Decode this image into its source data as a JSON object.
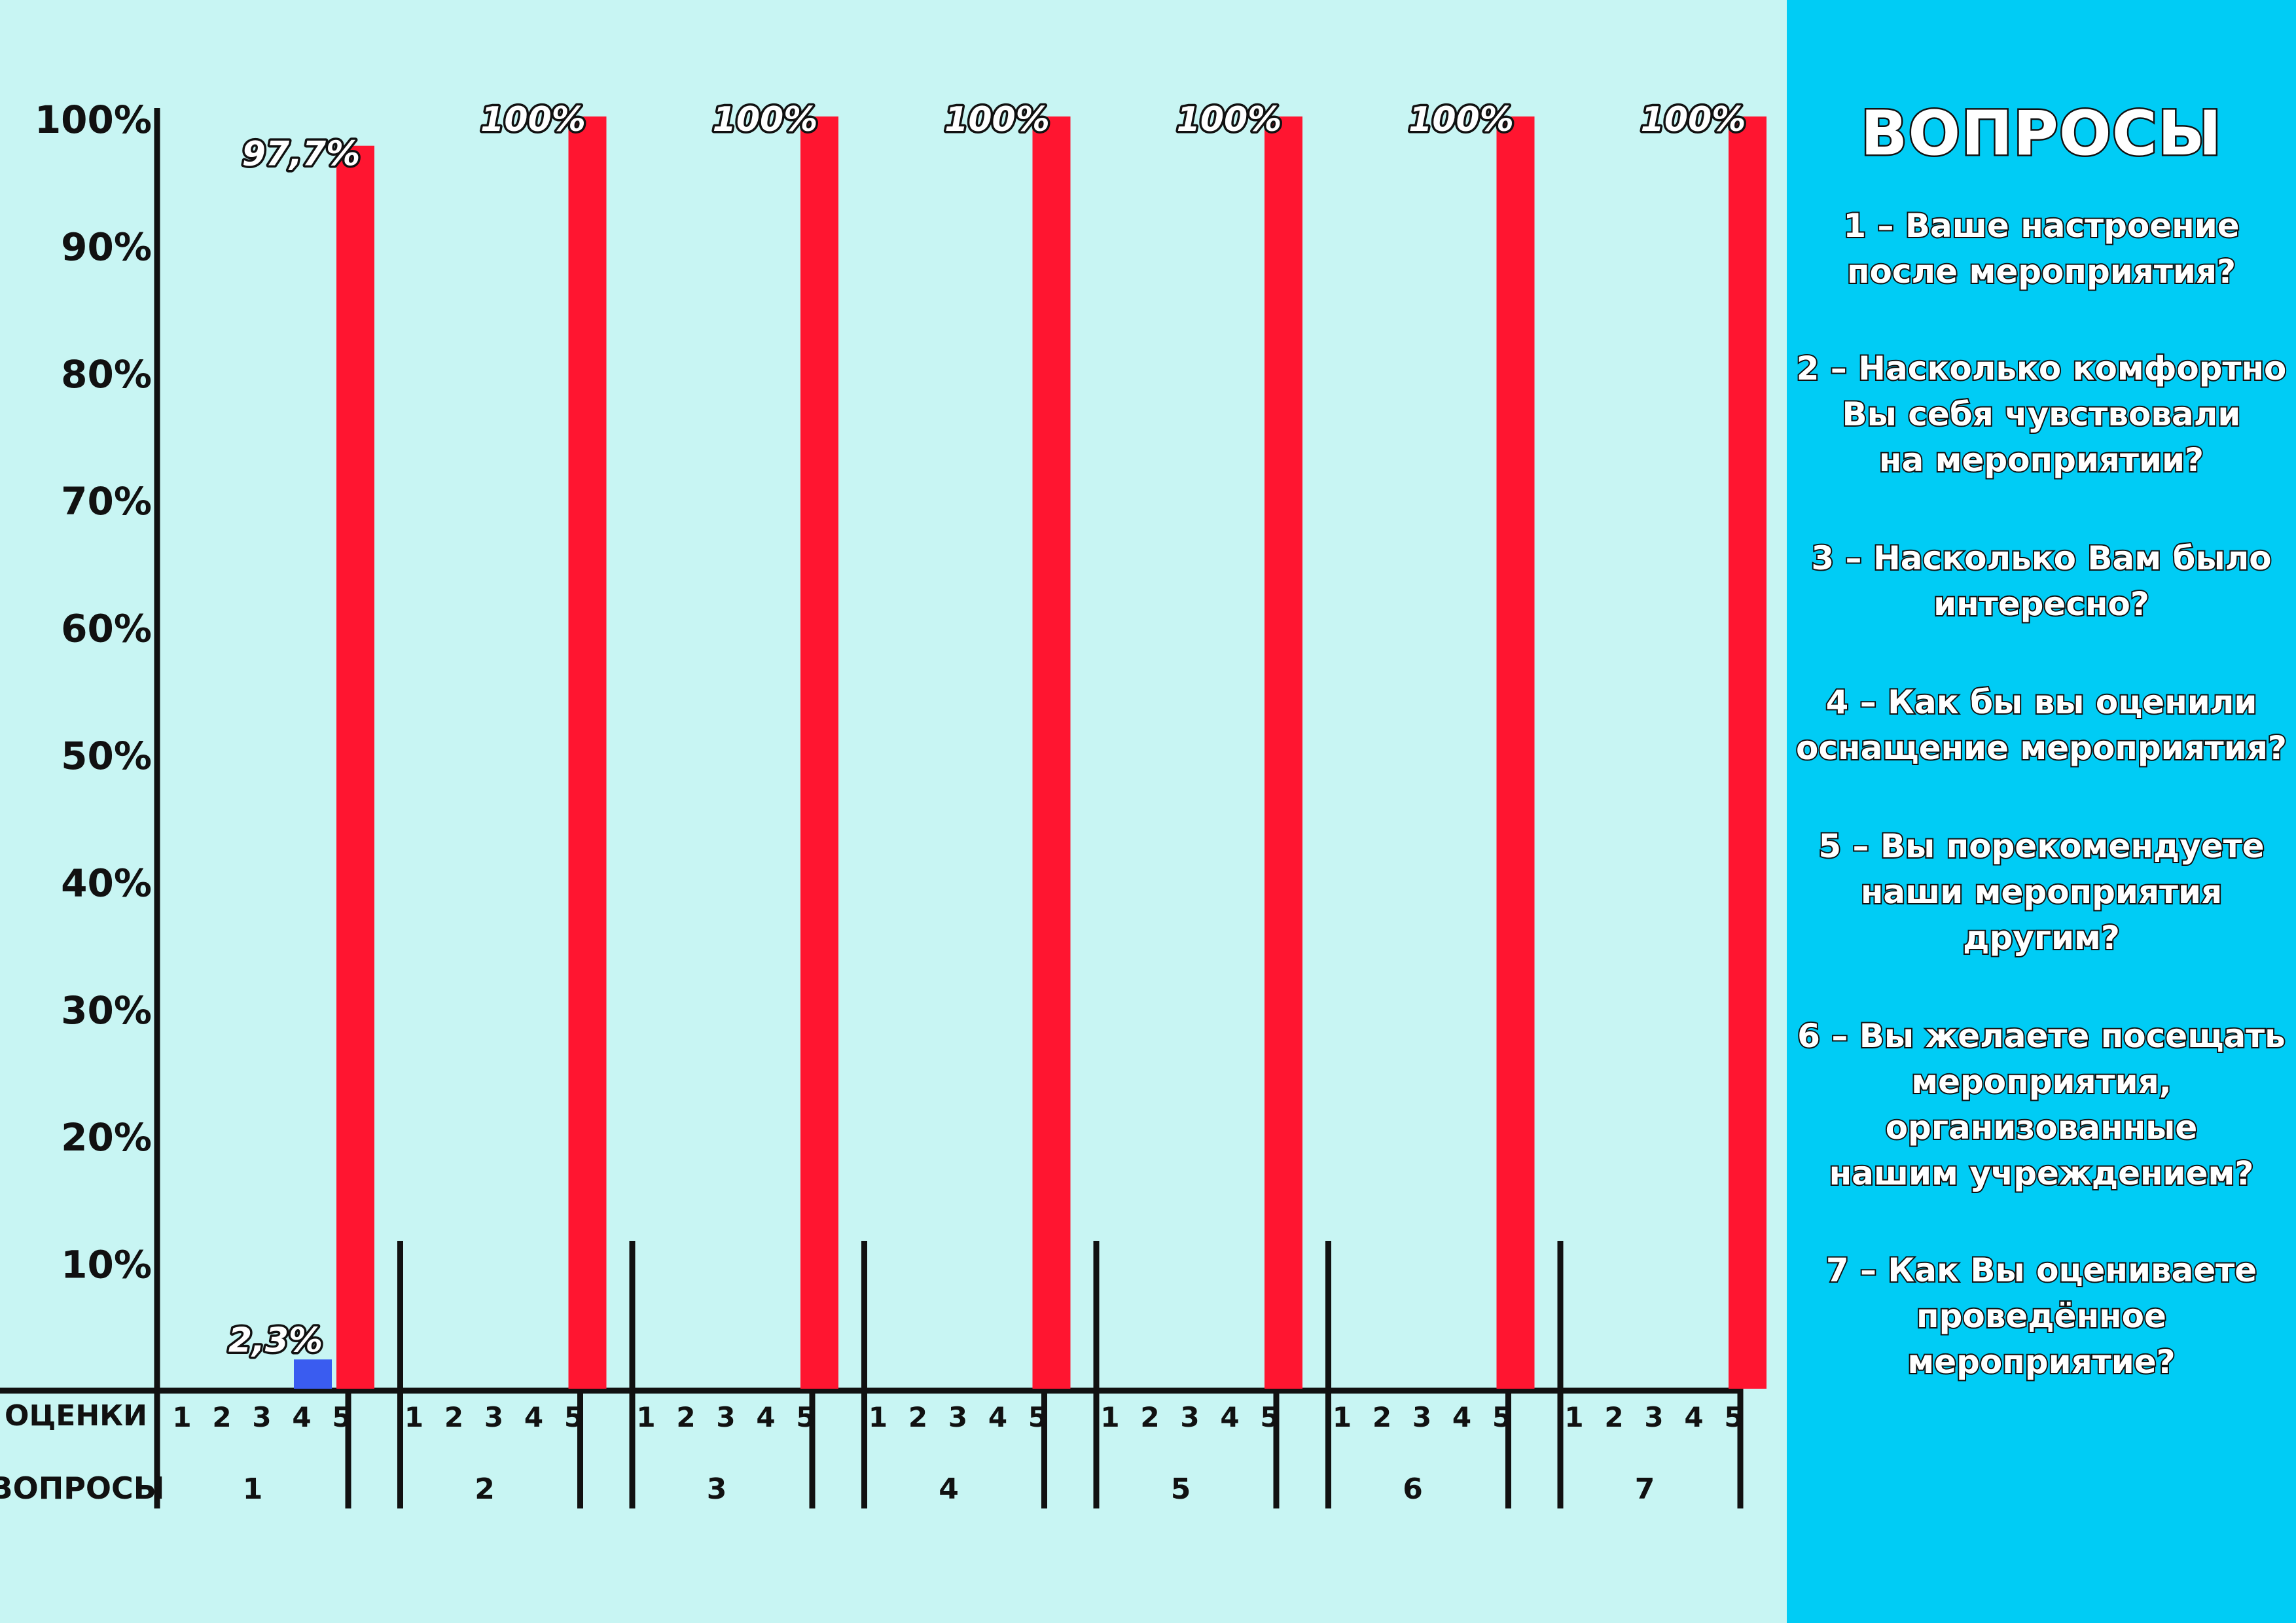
{
  "chart_data": {
    "type": "bar",
    "y_tick_labels": [
      "100%",
      "90%",
      "80%",
      "70%",
      "60%",
      "50%",
      "40%",
      "30%",
      "20%",
      "10%"
    ],
    "y_tick_values": [
      100,
      90,
      80,
      70,
      60,
      50,
      40,
      30,
      20,
      10
    ],
    "ylim": [
      0,
      100
    ],
    "row_label_ratings": "ОЦЕНКИ",
    "row_label_questions": "ВОПРОСЫ",
    "rating_labels": [
      "1",
      "2",
      "3",
      "4",
      "5"
    ],
    "groups": [
      {
        "question": "1",
        "values": [
          0,
          0,
          0,
          2.3,
          97.7
        ],
        "labels": [
          "",
          "",
          "",
          "2,3%",
          "97,7%"
        ]
      },
      {
        "question": "2",
        "values": [
          0,
          0,
          0,
          0,
          100
        ],
        "labels": [
          "",
          "",
          "",
          "",
          "100%"
        ]
      },
      {
        "question": "3",
        "values": [
          0,
          0,
          0,
          0,
          100
        ],
        "labels": [
          "",
          "",
          "",
          "",
          "100%"
        ]
      },
      {
        "question": "4",
        "values": [
          0,
          0,
          0,
          0,
          100
        ],
        "labels": [
          "",
          "",
          "",
          "",
          "100%"
        ]
      },
      {
        "question": "5",
        "values": [
          0,
          0,
          0,
          0,
          100
        ],
        "labels": [
          "",
          "",
          "",
          "",
          "100%"
        ]
      },
      {
        "question": "6",
        "values": [
          0,
          0,
          0,
          0,
          100
        ],
        "labels": [
          "",
          "",
          "",
          "",
          "100%"
        ]
      },
      {
        "question": "7",
        "values": [
          0,
          0,
          0,
          0,
          100
        ],
        "labels": [
          "",
          "",
          "",
          "",
          "100%"
        ]
      }
    ],
    "grid": false,
    "colors": {
      "rating_5": "#ff1530",
      "rating_4": "#3a5cf0",
      "axis": "#111111",
      "background": "#c8f5f3"
    }
  },
  "legend_panel": {
    "title": "ВОПРОСЫ",
    "background": "#00ccf5",
    "questions": [
      [
        "1 – Ваше настроение",
        "после мероприятия?"
      ],
      [
        "2 – Насколько комфортно",
        "Вы себя чувствовали",
        "на мероприятии?"
      ],
      [
        "3 – Насколько Вам было",
        "интересно?"
      ],
      [
        "4 – Как бы вы оценили",
        "оснащение мероприятия?"
      ],
      [
        "5 – Вы порекомендуете",
        "наши мероприятия",
        "другим?"
      ],
      [
        "6 – Вы желаете посещать",
        "мероприятия,",
        "организованные",
        "нашим учреждением?"
      ],
      [
        "7 – Как Вы оцениваете",
        "проведённое",
        "мероприятие?"
      ]
    ]
  }
}
